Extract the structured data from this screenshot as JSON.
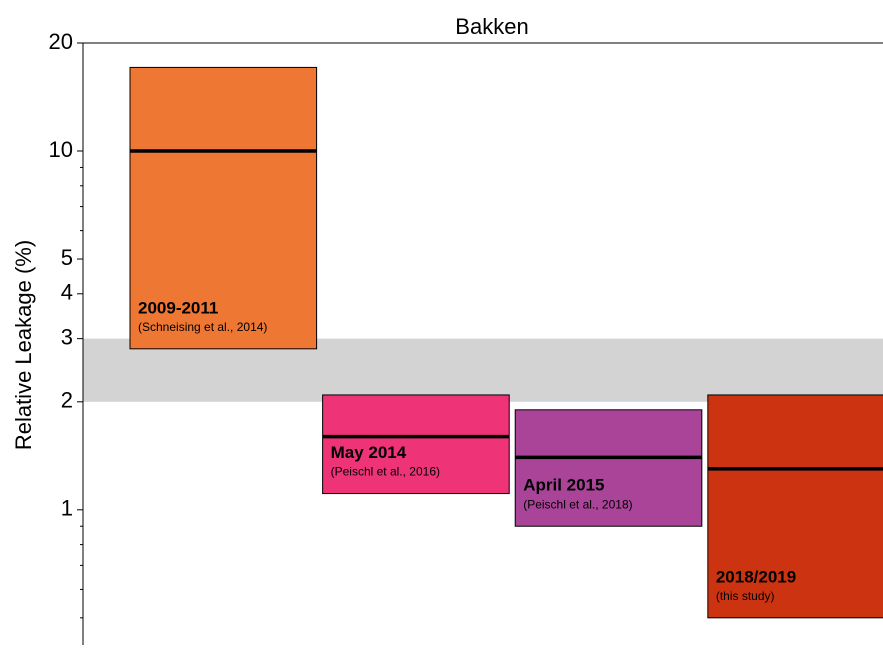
{
  "chart_data": {
    "type": "floating_bar",
    "title": "Bakken",
    "ylabel": "Relative Leakage (%)",
    "log_y": true,
    "ylim": [
      0.42,
      20
    ],
    "yticks": [
      1,
      2,
      3,
      4,
      5,
      10,
      20
    ],
    "yminor_ticks": [
      0.5,
      0.6,
      0.7,
      0.8,
      0.9,
      6,
      7,
      8,
      9
    ],
    "band": [
      2,
      3
    ],
    "band_color": "#d3d3d3",
    "categories": [
      "2009-2011",
      "May 2014",
      "April 2015",
      "2018/2019"
    ],
    "sources": [
      "(Schneising et al., 2014)",
      "(Peischl et al., 2016)",
      "(Peischl et al., 2018)",
      "(this study)"
    ],
    "low": [
      2.81,
      1.11,
      0.9,
      0.5
    ],
    "high": [
      17.1,
      2.09,
      1.9,
      2.09
    ],
    "median": [
      10,
      1.6,
      1.4,
      1.3
    ],
    "colors": [
      "#ee7733",
      "#ee3377",
      "#aa4499",
      "#cc3311"
    ]
  }
}
